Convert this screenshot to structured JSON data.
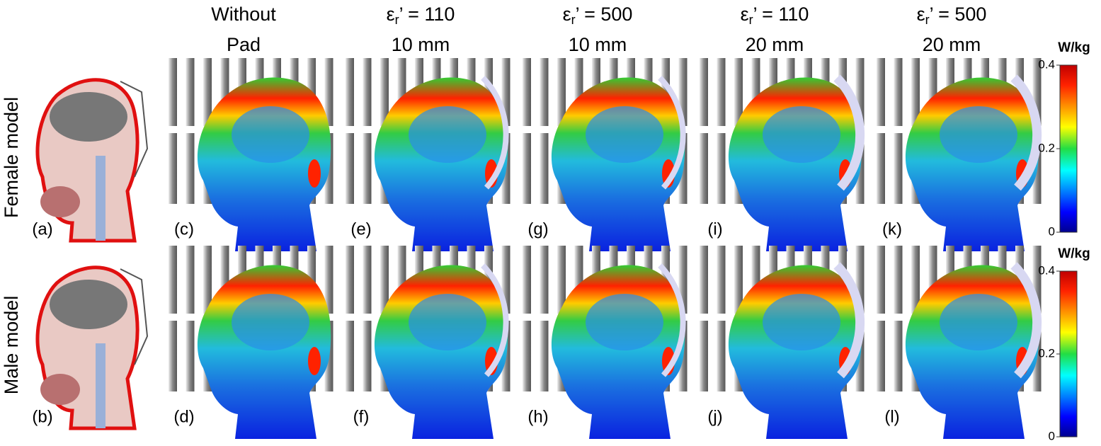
{
  "row_labels": [
    "Female model",
    "Male model"
  ],
  "columns": [
    {
      "line1": "Without",
      "line2": "Pad"
    },
    {
      "line1": {
        "symbol": "ε",
        "sub": "r",
        "rest": "’ = 110"
      },
      "line2": "10 mm"
    },
    {
      "line1": {
        "symbol": "ε",
        "sub": "r",
        "rest": "’ = 500"
      },
      "line2": "10 mm"
    },
    {
      "line1": {
        "symbol": "ε",
        "sub": "r",
        "rest": "’ = 110"
      },
      "line2": "20 mm"
    },
    {
      "line1": {
        "symbol": "ε",
        "sub": "r",
        "rest": "’ = 500"
      },
      "line2": "20 mm"
    }
  ],
  "panel_labels": [
    [
      "(a)",
      "(c)",
      "(e)",
      "(g)",
      "(i)",
      "(k)"
    ],
    [
      "(b)",
      "(d)",
      "(f)",
      "(h)",
      "(j)",
      "(l)"
    ]
  ],
  "colorbars": [
    {
      "unit": "W/kg",
      "ticks": [
        "0.4",
        "0.2",
        "0"
      ]
    },
    {
      "unit": "W/kg",
      "ticks": [
        "0.4",
        "0.2",
        "0"
      ]
    }
  ]
}
